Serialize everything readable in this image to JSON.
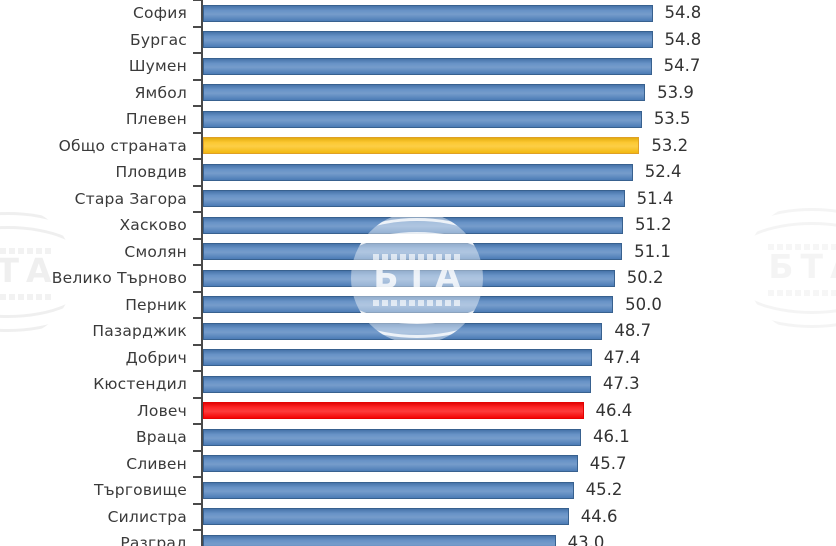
{
  "chart_data": {
    "type": "bar",
    "orientation": "horizontal",
    "title": "",
    "xlabel": "",
    "ylabel": "",
    "grid": false,
    "value_labels": true,
    "x_axis_visible": false,
    "xlim": [
      0,
      77
    ],
    "categories": [
      "София",
      "Бургас",
      "Шумен",
      "Ямбол",
      "Плевен",
      "Общо страната",
      "Пловдив",
      "Стара Загора",
      "Хасково",
      "Смолян",
      "Велико Търново",
      "Перник",
      "Пазарджик",
      "Добрич",
      "Кюстендил",
      "Ловеч",
      "Враца",
      "Сливен",
      "Търговище",
      "Силистра",
      "Разград"
    ],
    "values": [
      54.8,
      54.8,
      54.7,
      53.9,
      53.5,
      53.2,
      52.4,
      51.4,
      51.2,
      51.1,
      50.2,
      50.0,
      48.7,
      47.4,
      47.3,
      46.4,
      46.1,
      45.7,
      45.2,
      44.6,
      43.0
    ],
    "highlights": [
      {
        "index": 5,
        "category": "Общо страната",
        "color": "#FCC011",
        "border": "#DFA026"
      },
      {
        "index": 15,
        "category": "Ловеч",
        "color": "#FD0404",
        "border": "#E30202"
      }
    ],
    "default_bar_color": "#4F81BD",
    "default_bar_border": "#38618F"
  },
  "watermark": {
    "text": "БТА"
  },
  "colors": {
    "axis": "#4A4A4A",
    "tick": "#4A4A4A",
    "label_text": "#3A3A3A",
    "value_text": "#333333",
    "background": "#FFFFFF"
  }
}
